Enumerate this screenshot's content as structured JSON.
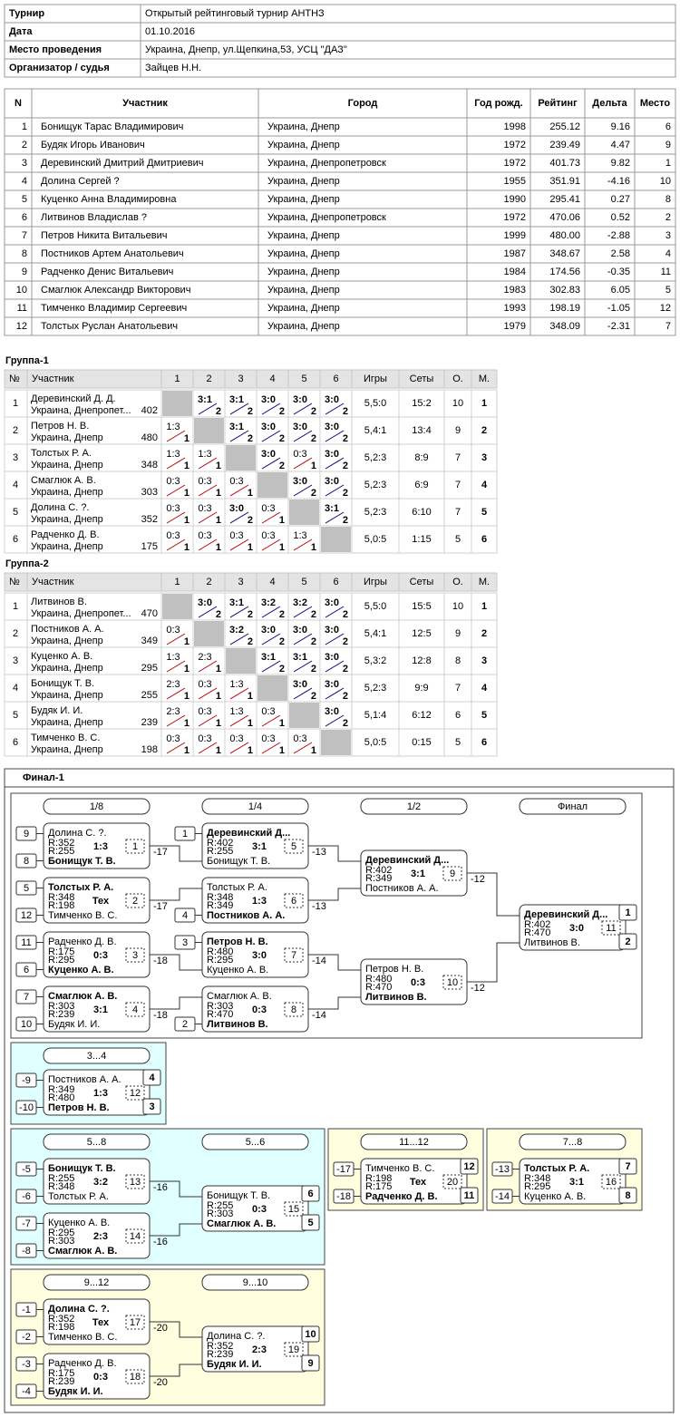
{
  "info": {
    "rows": [
      [
        "Турнир",
        "Открытый рейтинговый турнир АНТНЗ"
      ],
      [
        "Дата",
        "01.10.2016"
      ],
      [
        "Место проведения",
        "Украина, Днепр, ул.Щепкина,53, УСЦ \"ДАЗ\""
      ],
      [
        "Организатор / судья",
        "Зайцев Н.Н."
      ]
    ]
  },
  "participants": {
    "header": [
      "N",
      "Участник",
      "Город",
      "Год рожд.",
      "Рейтинг",
      "Дельта",
      "Место"
    ],
    "rows": [
      [
        "1",
        "Бонищук Тарас Владимирович",
        "Украина, Днепр",
        "1998",
        "255.12",
        "9.16",
        "6"
      ],
      [
        "2",
        "Будяк Игорь Иванович",
        "Украина, Днепр",
        "1972",
        "239.49",
        "4.47",
        "9"
      ],
      [
        "3",
        "Деревинский Дмитрий Дмитриевич",
        "Украина, Днепропетровск",
        "1972",
        "401.73",
        "9.82",
        "1"
      ],
      [
        "4",
        "Долина Сергей ?",
        "Украина, Днепр",
        "1955",
        "351.91",
        "-4.16",
        "10"
      ],
      [
        "5",
        "Куценко Анна Владимировна",
        "Украина, Днепр",
        "1990",
        "295.41",
        "0.27",
        "8"
      ],
      [
        "6",
        "Литвинов Владислав ?",
        "Украина, Днепропетровск",
        "1972",
        "470.06",
        "0.52",
        "2"
      ],
      [
        "7",
        "Петров Никита Витальевич",
        "Украина, Днепр",
        "1999",
        "480.00",
        "-2.88",
        "3"
      ],
      [
        "8",
        "Постников Артем Анатольевич",
        "Украина, Днепр",
        "1987",
        "348.67",
        "2.58",
        "4"
      ],
      [
        "9",
        "Радченко Денис Витальевич",
        "Украина, Днепр",
        "1984",
        "174.56",
        "-0.35",
        "11"
      ],
      [
        "10",
        "Смаглюк Александр Викторович",
        "Украина, Днепр",
        "1983",
        "302.83",
        "6.05",
        "5"
      ],
      [
        "11",
        "Тимченко Владимир Сергеевич",
        "Украина, Днепр",
        "1993",
        "198.19",
        "-1.05",
        "12"
      ],
      [
        "12",
        "Толстых Руслан Анатольевич",
        "Украина, Днепр",
        "1979",
        "348.09",
        "-2.31",
        "7"
      ]
    ]
  },
  "groups": [
    {
      "title": "Группа-1",
      "header": [
        "№",
        "Участник",
        "1",
        "2",
        "3",
        "4",
        "5",
        "6",
        "Игры",
        "Сеты",
        "О.",
        "М."
      ],
      "rows": [
        {
          "n": "1",
          "name": "Деревинский Д. Д.",
          "city": "Украина, Днепропет...",
          "rating": "402",
          "results": [
            null,
            {
              "score": "3:1",
              "pts": "2"
            },
            {
              "score": "3:1",
              "pts": "2"
            },
            {
              "score": "3:0",
              "pts": "2"
            },
            {
              "score": "3:0",
              "pts": "2"
            },
            {
              "score": "3:0",
              "pts": "2"
            }
          ],
          "games": "5,5:0",
          "sets": "15:2",
          "points": "10",
          "place": "1"
        },
        {
          "n": "2",
          "name": "Петров Н. В.",
          "city": "Украина, Днепр",
          "rating": "480",
          "results": [
            {
              "score": "1:3",
              "pts": "1"
            },
            null,
            {
              "score": "3:1",
              "pts": "2"
            },
            {
              "score": "3:0",
              "pts": "2"
            },
            {
              "score": "3:0",
              "pts": "2"
            },
            {
              "score": "3:0",
              "pts": "2"
            }
          ],
          "games": "5,4:1",
          "sets": "13:4",
          "points": "9",
          "place": "2"
        },
        {
          "n": "3",
          "name": "Толстых Р. А.",
          "city": "Украина, Днепр",
          "rating": "348",
          "results": [
            {
              "score": "1:3",
              "pts": "1"
            },
            {
              "score": "1:3",
              "pts": "1"
            },
            null,
            {
              "score": "3:0",
              "pts": "2"
            },
            {
              "score": "0:3",
              "pts": "1"
            },
            {
              "score": "3:0",
              "pts": "2"
            }
          ],
          "games": "5,2:3",
          "sets": "8:9",
          "points": "7",
          "place": "3"
        },
        {
          "n": "4",
          "name": "Смаглюк А. В.",
          "city": "Украина, Днепр",
          "rating": "303",
          "results": [
            {
              "score": "0:3",
              "pts": "1"
            },
            {
              "score": "0:3",
              "pts": "1"
            },
            {
              "score": "0:3",
              "pts": "1"
            },
            null,
            {
              "score": "3:0",
              "pts": "2"
            },
            {
              "score": "3:0",
              "pts": "2"
            }
          ],
          "games": "5,2:3",
          "sets": "6:9",
          "points": "7",
          "place": "4"
        },
        {
          "n": "5",
          "name": "Долина С. ?.",
          "city": "Украина, Днепр",
          "rating": "352",
          "results": [
            {
              "score": "0:3",
              "pts": "1"
            },
            {
              "score": "0:3",
              "pts": "1"
            },
            {
              "score": "3:0",
              "pts": "2"
            },
            {
              "score": "0:3",
              "pts": "1"
            },
            null,
            {
              "score": "3:1",
              "pts": "2"
            }
          ],
          "games": "5,2:3",
          "sets": "6:10",
          "points": "7",
          "place": "5"
        },
        {
          "n": "6",
          "name": "Радченко Д. В.",
          "city": "Украина, Днепр",
          "rating": "175",
          "results": [
            {
              "score": "0:3",
              "pts": "1"
            },
            {
              "score": "0:3",
              "pts": "1"
            },
            {
              "score": "0:3",
              "pts": "1"
            },
            {
              "score": "0:3",
              "pts": "1"
            },
            {
              "score": "1:3",
              "pts": "1"
            },
            null
          ],
          "games": "5,0:5",
          "sets": "1:15",
          "points": "5",
          "place": "6"
        }
      ]
    },
    {
      "title": "Группа-2",
      "header": [
        "№",
        "Участник",
        "1",
        "2",
        "3",
        "4",
        "5",
        "6",
        "Игры",
        "Сеты",
        "О.",
        "М."
      ],
      "rows": [
        {
          "n": "1",
          "name": "Литвинов В.",
          "city": "Украина, Днепропет...",
          "rating": "470",
          "results": [
            null,
            {
              "score": "3:0",
              "pts": "2"
            },
            {
              "score": "3:1",
              "pts": "2"
            },
            {
              "score": "3:2",
              "pts": "2"
            },
            {
              "score": "3:2",
              "pts": "2"
            },
            {
              "score": "3:0",
              "pts": "2"
            }
          ],
          "games": "5,5:0",
          "sets": "15:5",
          "points": "10",
          "place": "1"
        },
        {
          "n": "2",
          "name": "Постников А. А.",
          "city": "Украина, Днепр",
          "rating": "349",
          "results": [
            {
              "score": "0:3",
              "pts": "1"
            },
            null,
            {
              "score": "3:2",
              "pts": "2"
            },
            {
              "score": "3:0",
              "pts": "2"
            },
            {
              "score": "3:0",
              "pts": "2"
            },
            {
              "score": "3:0",
              "pts": "2"
            }
          ],
          "games": "5,4:1",
          "sets": "12:5",
          "points": "9",
          "place": "2"
        },
        {
          "n": "3",
          "name": "Куценко А. В.",
          "city": "Украина, Днепр",
          "rating": "295",
          "results": [
            {
              "score": "1:3",
              "pts": "1"
            },
            {
              "score": "2:3",
              "pts": "1"
            },
            null,
            {
              "score": "3:1",
              "pts": "2"
            },
            {
              "score": "3:1",
              "pts": "2"
            },
            {
              "score": "3:0",
              "pts": "2"
            }
          ],
          "games": "5,3:2",
          "sets": "12:8",
          "points": "8",
          "place": "3"
        },
        {
          "n": "4",
          "name": "Бонищук Т. В.",
          "city": "Украина, Днепр",
          "rating": "255",
          "results": [
            {
              "score": "2:3",
              "pts": "1"
            },
            {
              "score": "0:3",
              "pts": "1"
            },
            {
              "score": "1:3",
              "pts": "1"
            },
            null,
            {
              "score": "3:0",
              "pts": "2"
            },
            {
              "score": "3:0",
              "pts": "2"
            }
          ],
          "games": "5,2:3",
          "sets": "9:9",
          "points": "7",
          "place": "4"
        },
        {
          "n": "5",
          "name": "Будяк И. И.",
          "city": "Украина, Днепр",
          "rating": "239",
          "results": [
            {
              "score": "2:3",
              "pts": "1"
            },
            {
              "score": "0:3",
              "pts": "1"
            },
            {
              "score": "1:3",
              "pts": "1"
            },
            {
              "score": "0:3",
              "pts": "1"
            },
            null,
            {
              "score": "3:0",
              "pts": "2"
            }
          ],
          "games": "5,1:4",
          "sets": "6:12",
          "points": "6",
          "place": "5"
        },
        {
          "n": "6",
          "name": "Тимченко В. С.",
          "city": "Украина, Днепр",
          "rating": "198",
          "results": [
            {
              "score": "0:3",
              "pts": "1"
            },
            {
              "score": "0:3",
              "pts": "1"
            },
            {
              "score": "0:3",
              "pts": "1"
            },
            {
              "score": "0:3",
              "pts": "1"
            },
            {
              "score": "0:3",
              "pts": "1"
            },
            null
          ],
          "games": "5,0:5",
          "sets": "0:15",
          "points": "5",
          "place": "6"
        }
      ]
    }
  ],
  "final": {
    "title": "Финал-1",
    "panels": [
      {
        "rounds": [
          "1/8",
          "1/4",
          "1/2",
          "Финал"
        ],
        "matches": [
          {
            "seed1": "9",
            "seed2": "8",
            "p1": "Долина С. ?.",
            "r1": "R:352",
            "p2": "Бонищук Т. В.",
            "r2": "R:255",
            "winner": 2,
            "score": "1:3",
            "num": "1",
            "next": "-17"
          },
          {
            "seed1": "5",
            "seed2": "12",
            "p1": "Толстых Р. А.",
            "r1": "R:348",
            "p2": "Тимченко В. С.",
            "r2": "R:198",
            "winner": 1,
            "score": "Тех",
            "num": "2",
            "next": "-17"
          },
          {
            "seed1": "11",
            "seed2": "6",
            "p1": "Радченко Д. В.",
            "r1": "R:175",
            "p2": "Куценко А. В.",
            "r2": "R:295",
            "winner": 2,
            "score": "0:3",
            "num": "3",
            "next": "-18"
          },
          {
            "seed1": "7",
            "seed2": "10",
            "p1": "Смаглюк А. В.",
            "r1": "R:303",
            "p2": "Будяк И. И.",
            "r2": "R:239",
            "winner": 1,
            "score": "3:1",
            "num": "4",
            "next": "-18"
          },
          {
            "seed1": "1",
            "p1": "Деревинский Д...",
            "r1": "R:402",
            "p2": "Бонищук Т. В.",
            "r2": "R:255",
            "winner": 1,
            "score": "3:1",
            "num": "5",
            "next": "-13"
          },
          {
            "seed2": "4",
            "p1": "Толстых Р. А.",
            "r1": "R:348",
            "p2": "Постников А. А.",
            "r2": "R:349",
            "winner": 2,
            "score": "1:3",
            "num": "6",
            "next": "-13"
          },
          {
            "seed1": "3",
            "p1": "Петров Н. В.",
            "r1": "R:480",
            "p2": "Куценко А. В.",
            "r2": "R:295",
            "winner": 1,
            "score": "3:0",
            "num": "7",
            "next": "-14"
          },
          {
            "seed2": "2",
            "p1": "Смаглюк А. В.",
            "r1": "R:303",
            "p2": "Литвинов В.",
            "r2": "R:470",
            "winner": 2,
            "score": "0:3",
            "num": "8",
            "next": "-14"
          },
          {
            "p1": "Деревинский Д...",
            "r1": "R:402",
            "p2": "Постников А. А.",
            "r2": "R:349",
            "winner": 1,
            "score": "3:1",
            "num": "9",
            "next": "-12"
          },
          {
            "p1": "Петров Н. В.",
            "r1": "R:480",
            "p2": "Литвинов В.",
            "r2": "R:470",
            "winner": 2,
            "score": "0:3",
            "num": "10",
            "next": "-12"
          },
          {
            "p1": "Деревинский Д...",
            "r1": "R:402",
            "p2": "Литвинов В.",
            "r2": "R:470",
            "winner": 1,
            "score": "3:0",
            "num": "11",
            "place1": "1",
            "place2": "2"
          }
        ]
      },
      {
        "rounds": [
          "3...4"
        ],
        "matches": [
          {
            "seed1": "-9",
            "seed2": "-10",
            "p1": "Постников А. А.",
            "r1": "R:349",
            "p2": "Петров Н. В.",
            "r2": "R:480",
            "winner": 2,
            "score": "1:3",
            "num": "12",
            "place1": "4",
            "place2": "3"
          }
        ]
      },
      {
        "rounds": [
          "5...8",
          "5...6"
        ],
        "matches": [
          {
            "seed1": "-5",
            "seed2": "-6",
            "p1": "Бонищук Т. В.",
            "r1": "R:255",
            "p2": "Толстых Р. А.",
            "r2": "R:348",
            "winner": 1,
            "score": "3:2",
            "num": "13",
            "next": "-16"
          },
          {
            "seed1": "-7",
            "seed2": "-8",
            "p1": "Куценко А. В.",
            "r1": "R:295",
            "p2": "Смаглюк А. В.",
            "r2": "R:303",
            "winner": 2,
            "score": "2:3",
            "num": "14",
            "next": "-16"
          },
          {
            "p1": "Бонищук Т. В.",
            "r1": "R:255",
            "p2": "Смаглюк А. В.",
            "r2": "R:303",
            "winner": 2,
            "score": "0:3",
            "num": "15",
            "place1": "6",
            "place2": "5"
          }
        ]
      },
      {
        "rounds": [
          "11...12"
        ],
        "matches": [
          {
            "seed1": "-17",
            "seed2": "-18",
            "p1": "Тимченко В. С.",
            "r1": "R:198",
            "p2": "Радченко Д. В.",
            "r2": "R:175",
            "winner": 2,
            "score": "Тех",
            "num": "20",
            "place1": "12",
            "place2": "11"
          }
        ]
      },
      {
        "rounds": [
          "7...8"
        ],
        "matches": [
          {
            "seed1": "-13",
            "seed2": "-14",
            "p1": "Толстых Р. А.",
            "r1": "R:348",
            "p2": "Куценко А. В.",
            "r2": "R:295",
            "winner": 1,
            "score": "3:1",
            "num": "16",
            "place1": "7",
            "place2": "8"
          }
        ]
      },
      {
        "rounds": [
          "9...12",
          "9...10"
        ],
        "matches": [
          {
            "seed1": "-1",
            "seed2": "-2",
            "p1": "Долина С. ?.",
            "r1": "R:352",
            "p2": "Тимченко В. С.",
            "r2": "R:198",
            "winner": 1,
            "score": "Тех",
            "num": "17",
            "next": "-20"
          },
          {
            "seed1": "-3",
            "seed2": "-4",
            "p1": "Радченко Д. В.",
            "r1": "R:175",
            "p2": "Будяк И. И.",
            "r2": "R:239",
            "winner": 2,
            "score": "0:3",
            "num": "18",
            "next": "-20"
          },
          {
            "p1": "Долина С. ?.",
            "r1": "R:352",
            "p2": "Будяк И. И.",
            "r2": "R:239",
            "winner": 2,
            "score": "2:3",
            "num": "19",
            "place1": "10",
            "place2": "9"
          }
        ]
      }
    ]
  }
}
